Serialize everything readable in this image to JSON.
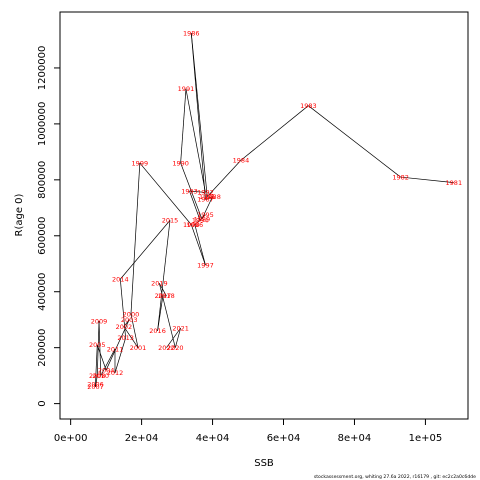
{
  "chart_data": {
    "type": "line",
    "title": "",
    "xlabel": "SSB",
    "ylabel": "R(age 0)",
    "xlim": [
      -3000,
      112000
    ],
    "ylim": [
      -55000,
      1400000
    ],
    "x_ticks": [
      0,
      20000,
      40000,
      60000,
      80000,
      100000
    ],
    "x_tick_labels": [
      "0e+00",
      "2e+04",
      "4e+04",
      "6e+04",
      "8e+04",
      "1e+05"
    ],
    "y_ticks": [
      0,
      200000,
      400000,
      600000,
      800000,
      1000000,
      1200000
    ],
    "y_tick_labels": [
      "0",
      "200000",
      "400000",
      "600000",
      "800000",
      "1000000",
      "1200000"
    ],
    "grid": false,
    "legend": "none",
    "line_color": "#000000",
    "label_color": "#ff0000",
    "points": [
      {
        "label": "1981",
        "x": 108000,
        "y": 790000
      },
      {
        "label": "1982",
        "x": 93000,
        "y": 810000
      },
      {
        "label": "1983",
        "x": 67000,
        "y": 1065000
      },
      {
        "label": "1984",
        "x": 48000,
        "y": 870000
      },
      {
        "label": "1985",
        "x": 38500,
        "y": 740000
      },
      {
        "label": "1986",
        "x": 34000,
        "y": 1325000
      },
      {
        "label": "1987",
        "x": 38000,
        "y": 730000
      },
      {
        "label": "1988",
        "x": 40000,
        "y": 740000
      },
      {
        "label": "1989",
        "x": 37000,
        "y": 660000
      },
      {
        "label": "1990",
        "x": 31000,
        "y": 860000
      },
      {
        "label": "1991",
        "x": 32500,
        "y": 1125000
      },
      {
        "label": "1992",
        "x": 38000,
        "y": 755000
      },
      {
        "label": "1993",
        "x": 33500,
        "y": 760000
      },
      {
        "label": "1994",
        "x": 36500,
        "y": 655000
      },
      {
        "label": "1995",
        "x": 38000,
        "y": 675000
      },
      {
        "label": "1996",
        "x": 35000,
        "y": 640000
      },
      {
        "label": "1997",
        "x": 38000,
        "y": 495000
      },
      {
        "label": "1998",
        "x": 34000,
        "y": 640000
      },
      {
        "label": "1999",
        "x": 19500,
        "y": 860000
      },
      {
        "label": "2000",
        "x": 17000,
        "y": 320000
      },
      {
        "label": "2001",
        "x": 19000,
        "y": 200000
      },
      {
        "label": "2002",
        "x": 15000,
        "y": 275000
      },
      {
        "label": "2003",
        "x": 16500,
        "y": 300000
      },
      {
        "label": "2004",
        "x": 10000,
        "y": 120000
      },
      {
        "label": "2005",
        "x": 7500,
        "y": 210000
      },
      {
        "label": "2006",
        "x": 7000,
        "y": 70000
      },
      {
        "label": "2007",
        "x": 7000,
        "y": 60000
      },
      {
        "label": "2008",
        "x": 7500,
        "y": 100000
      },
      {
        "label": "2009",
        "x": 8000,
        "y": 295000
      },
      {
        "label": "2010",
        "x": 8500,
        "y": 100000
      },
      {
        "label": "2011",
        "x": 12500,
        "y": 195000
      },
      {
        "label": "2012",
        "x": 12500,
        "y": 110000
      },
      {
        "label": "2013",
        "x": 15500,
        "y": 235000
      },
      {
        "label": "2014",
        "x": 14000,
        "y": 445000
      },
      {
        "label": "2015",
        "x": 28000,
        "y": 655000
      },
      {
        "label": "2016",
        "x": 24500,
        "y": 260000
      },
      {
        "label": "2017",
        "x": 26000,
        "y": 385000
      },
      {
        "label": "2018",
        "x": 27000,
        "y": 385000
      },
      {
        "label": "2019",
        "x": 25000,
        "y": 430000
      },
      {
        "label": "2020",
        "x": 29500,
        "y": 200000
      },
      {
        "label": "2021",
        "x": 31000,
        "y": 270000
      },
      {
        "label": "2022",
        "x": 27000,
        "y": 200000
      }
    ]
  },
  "footer_text": "stockassessment.org,  whiting  27.6a  2022,  r16179 ,  git:  ec2c2a0c6dde"
}
